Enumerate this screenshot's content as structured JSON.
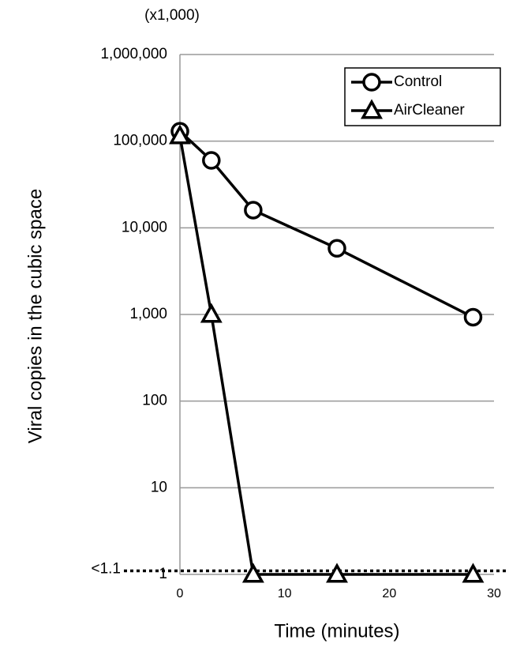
{
  "chart_data": {
    "type": "line",
    "unit_note": "(x1,000)",
    "xlabel": "Time (minutes)",
    "ylabel": "Viral copies in the cubic space",
    "log_y": true,
    "grid": true,
    "legend": "upper right",
    "xlim": [
      0,
      30
    ],
    "xticks": [
      0,
      10,
      20,
      30
    ],
    "ylim": [
      1,
      1000000
    ],
    "yticks": [
      1,
      10,
      100,
      {
        "value": 1000,
        "label": "1,000"
      },
      {
        "value": 10000,
        "label": "10,000"
      },
      {
        "value": 100000,
        "label": "100,000"
      },
      {
        "value": 1000000,
        "label": "1,000,000"
      }
    ],
    "threshold": {
      "value": 1.1,
      "label": "<1.1"
    },
    "series": [
      {
        "name": "Control",
        "color": "#000000",
        "marker": "circle",
        "x": [
          0,
          3,
          7,
          15,
          28
        ],
        "values": [
          130000,
          60000,
          16000,
          5800,
          930
        ]
      },
      {
        "name": "AirCleaner",
        "color": "#000000",
        "marker": "triangle",
        "x": [
          0,
          3,
          7,
          15,
          28
        ],
        "values": [
          115000,
          1000,
          1,
          1,
          1
        ]
      }
    ]
  }
}
